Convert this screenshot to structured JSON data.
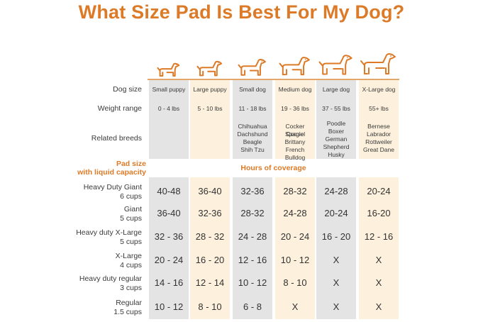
{
  "title": "What Size Pad Is Best For My Dog?",
  "colors": {
    "accent": "#dd7a27",
    "gray_column": "#e4e4e4",
    "cream_column": "#fdf1dd"
  },
  "dog_sizes": [
    "Small puppy",
    "Large puppy",
    "Small dog",
    "Medium dog",
    "Large dog",
    "X-Large dog"
  ],
  "row_labels": {
    "dog_size": "Dog size",
    "weight_range": "Weight range",
    "related_breeds": "Related breeds"
  },
  "weights": [
    "0 - 4 lbs",
    "5 - 10 lbs",
    "11 - 18 lbs",
    "19 - 36 lbs",
    "37 - 55 lbs",
    "55+ lbs"
  ],
  "breeds": [
    [],
    [],
    [
      "Chihuahua",
      "Dachshund",
      "Beagle",
      "Shih Tzu"
    ],
    [
      "Cocker Spaniel",
      "Corgie",
      "Brittany",
      "French Bulldog"
    ],
    [
      "Poodle",
      "Boxer",
      "German",
      "Shepherd",
      "Husky"
    ],
    [
      "Bernese",
      "Labrador",
      "Rottweiler",
      "Great Dane"
    ]
  ],
  "pad_header": {
    "line1": "Pad size",
    "line2": "with liquid capacity"
  },
  "hours_header": "Hours of coverage",
  "pads": [
    {
      "name": "Heavy Duty Giant",
      "capacity": "6 cups",
      "values": [
        "40-48",
        "36-40",
        "32-36",
        "28-32",
        "24-28",
        "20-24"
      ]
    },
    {
      "name": "Giant",
      "capacity": "5 cups",
      "values": [
        "36-40",
        "32-36",
        "28-32",
        "24-28",
        "20-24",
        "16-20"
      ]
    },
    {
      "name": "Heavy duty X-Large",
      "capacity": "5 cups",
      "values": [
        "32 - 36",
        "28 - 32",
        "24 - 28",
        "20 - 24",
        "16 - 20",
        "12 - 16"
      ]
    },
    {
      "name": "X-Large",
      "capacity": "4 cups",
      "values": [
        "20 - 24",
        "16 - 20",
        "12 - 16",
        "10 - 12",
        "X",
        "X"
      ]
    },
    {
      "name": "Heavy duty regular",
      "capacity": "3 cups",
      "values": [
        "14 - 16",
        "12 - 14",
        "10 - 12",
        "8 - 10",
        "X",
        "X"
      ]
    },
    {
      "name": "Regular",
      "capacity": "1.5 cups",
      "values": [
        "10 - 12",
        "8 - 10",
        "6 - 8",
        "X",
        "X",
        "X"
      ]
    }
  ],
  "dog_icons": [
    "small-puppy-icon",
    "large-puppy-icon",
    "small-dog-icon",
    "medium-dog-icon",
    "large-dog-icon",
    "x-large-dog-icon"
  ]
}
